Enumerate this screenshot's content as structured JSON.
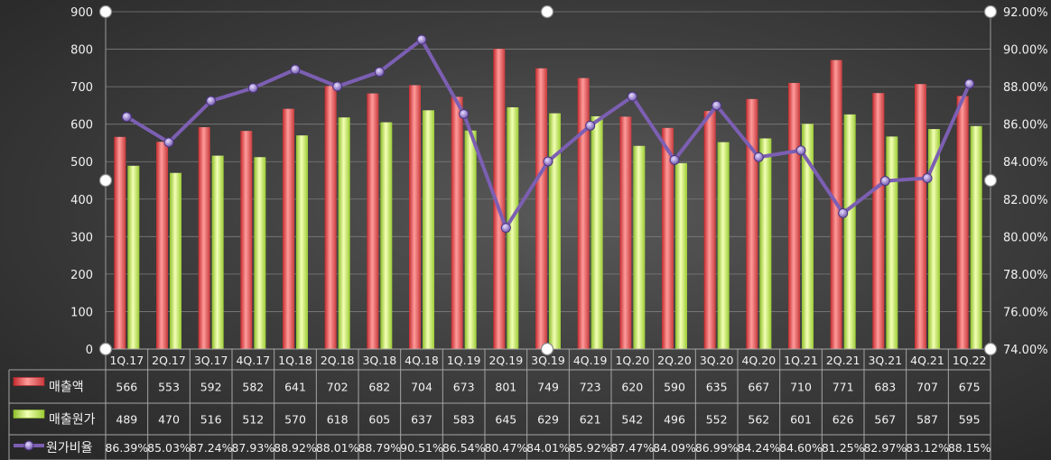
{
  "chart_data": {
    "type": "bar",
    "categories": [
      "1Q.17",
      "2Q.17",
      "3Q.17",
      "4Q.17",
      "1Q.18",
      "2Q.18",
      "3Q.18",
      "4Q.18",
      "1Q.19",
      "2Q.19",
      "3Q.19",
      "4Q.19",
      "1Q.20",
      "2Q.20",
      "3Q.20",
      "4Q.20",
      "1Q.21",
      "2Q.21",
      "3Q.21",
      "4Q.21",
      "1Q.22"
    ],
    "series": [
      {
        "name": "매출액",
        "type": "bar",
        "axis": "left",
        "color": "#e8474a",
        "values": [
          566,
          553,
          592,
          582,
          641,
          702,
          682,
          704,
          673,
          801,
          749,
          723,
          620,
          590,
          635,
          667,
          710,
          771,
          683,
          707,
          675
        ]
      },
      {
        "name": "매출원가",
        "type": "bar",
        "axis": "left",
        "color": "#b8e05a",
        "values": [
          489,
          470,
          516,
          512,
          570,
          618,
          605,
          637,
          583,
          645,
          629,
          621,
          542,
          496,
          552,
          562,
          601,
          626,
          567,
          587,
          595
        ]
      },
      {
        "name": "원가비율",
        "type": "line",
        "axis": "right",
        "color": "#7c5fb3",
        "values": [
          86.39,
          85.03,
          87.24,
          87.93,
          88.92,
          88.01,
          88.79,
          90.51,
          86.54,
          80.47,
          84.01,
          85.92,
          87.47,
          84.09,
          86.99,
          84.24,
          84.6,
          81.25,
          82.97,
          83.12,
          88.15
        ],
        "labels": [
          "86.39%",
          "85.03%",
          "87.24%",
          "87.93%",
          "88.92%",
          "88.01%",
          "88.79%",
          "90.51%",
          "86.54%",
          "80.47%",
          "84.01%",
          "85.92%",
          "87.47%",
          "84.09%",
          "86.99%",
          "84.24%",
          "84.60%",
          "81.25%",
          "82.97%",
          "83.12%",
          "88.15%"
        ]
      }
    ],
    "y_left": {
      "min": 0,
      "max": 900,
      "step": 100,
      "tick_labels": [
        "0",
        "100",
        "200",
        "300",
        "400",
        "500",
        "600",
        "700",
        "800",
        "900"
      ]
    },
    "y_right": {
      "min": 74,
      "max": 92,
      "step": 2,
      "tick_labels": [
        "74.00%",
        "76.00%",
        "78.00%",
        "80.00%",
        "82.00%",
        "84.00%",
        "86.00%",
        "88.00%",
        "90.00%",
        "92.00%"
      ]
    },
    "grid": true,
    "data_table": true,
    "title": ""
  }
}
